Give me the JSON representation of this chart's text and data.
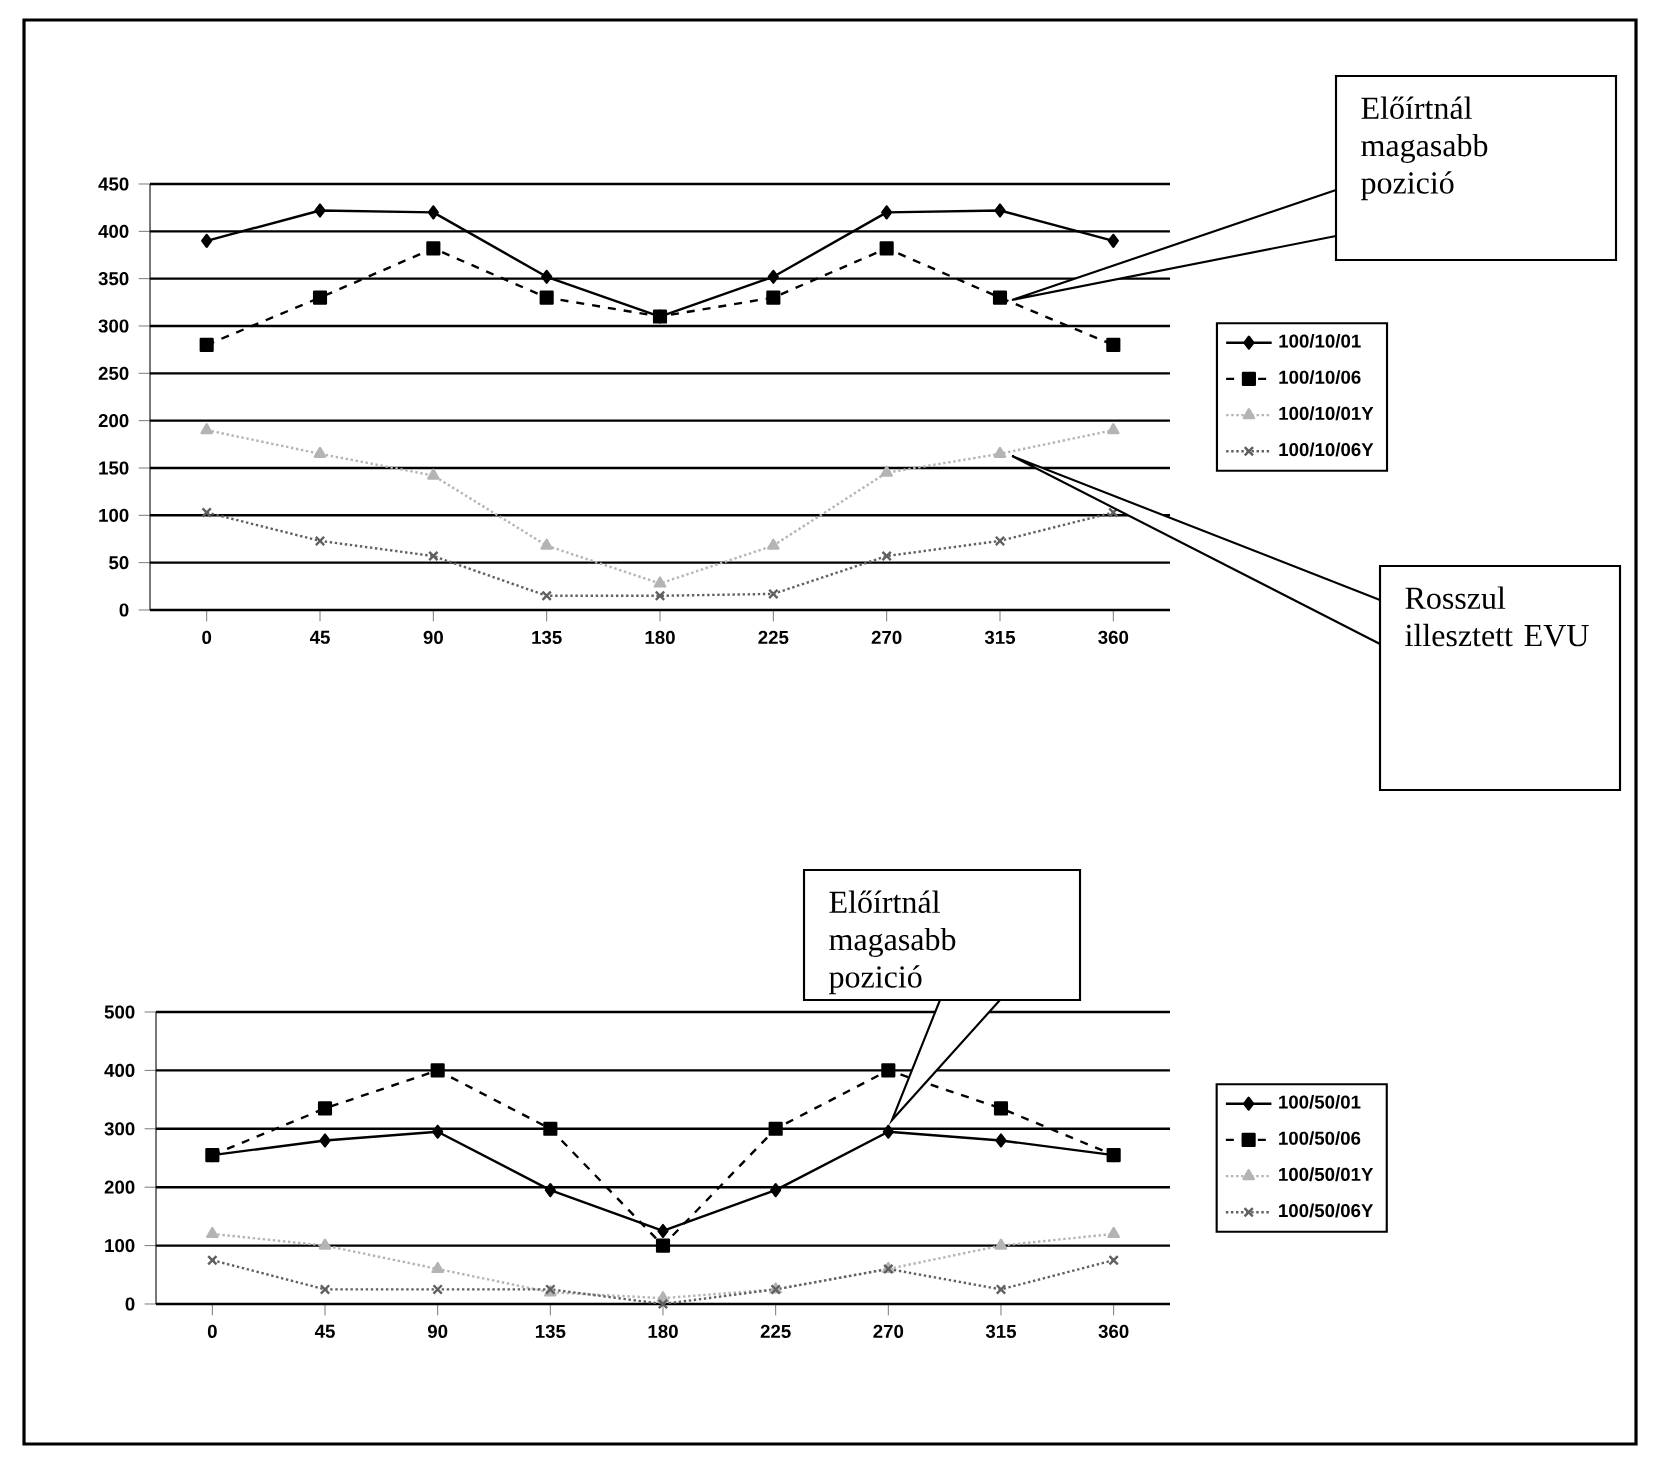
{
  "chart_data": [
    {
      "type": "line",
      "categories": [
        "0",
        "45",
        "90",
        "135",
        "180",
        "225",
        "270",
        "315",
        "360"
      ],
      "ylim": [
        0,
        450
      ],
      "yticks": [
        0,
        50,
        100,
        150,
        200,
        250,
        300,
        350,
        400,
        450
      ],
      "grid": "y",
      "legend": "right",
      "series": [
        {
          "name": "100/10/01",
          "color": "#000000",
          "marker": "diamond",
          "line_style": "solid",
          "values": [
            390,
            422,
            420,
            352,
            310,
            352,
            420,
            422,
            390
          ]
        },
        {
          "name": "100/10/06",
          "color": "#000000",
          "marker": "square",
          "line_style": "dashed",
          "values": [
            280,
            330,
            382,
            330,
            310,
            330,
            382,
            330,
            280
          ]
        },
        {
          "name": "100/10/01Y",
          "color": "#b4b4b4",
          "marker": "triangle",
          "line_style": "dotted",
          "values": [
            190,
            165,
            142,
            68,
            28,
            68,
            145,
            165,
            190
          ]
        },
        {
          "name": "100/10/06Y",
          "color": "#606060",
          "marker": "cross",
          "line_style": "dotted",
          "values": [
            103,
            73,
            57,
            15,
            15,
            17,
            57,
            73,
            103
          ]
        }
      ],
      "annotations": [
        "Előírtnál magasabb pozició",
        "Rosszul illesztett EVU"
      ]
    },
    {
      "type": "line",
      "categories": [
        "0",
        "45",
        "90",
        "135",
        "180",
        "225",
        "270",
        "315",
        "360"
      ],
      "ylim": [
        0,
        500
      ],
      "yticks": [
        0,
        100,
        200,
        300,
        400,
        500
      ],
      "grid": "y",
      "legend": "right",
      "series": [
        {
          "name": "100/50/01",
          "color": "#000000",
          "marker": "diamond",
          "line_style": "solid",
          "values": [
            255,
            280,
            295,
            195,
            125,
            195,
            295,
            280,
            255
          ]
        },
        {
          "name": "100/50/06",
          "color": "#000000",
          "marker": "square",
          "line_style": "dashed",
          "values": [
            255,
            335,
            400,
            300,
            100,
            300,
            400,
            335,
            255
          ]
        },
        {
          "name": "100/50/01Y",
          "color": "#b4b4b4",
          "marker": "triangle",
          "line_style": "dotted",
          "values": [
            120,
            100,
            60,
            20,
            10,
            25,
            60,
            100,
            120
          ]
        },
        {
          "name": "100/50/06Y",
          "color": "#606060",
          "marker": "cross",
          "line_style": "dotted",
          "values": [
            75,
            25,
            25,
            25,
            0,
            25,
            60,
            25,
            75
          ]
        }
      ],
      "annotations": [
        "Előírtnál magasabb pozició"
      ]
    }
  ]
}
